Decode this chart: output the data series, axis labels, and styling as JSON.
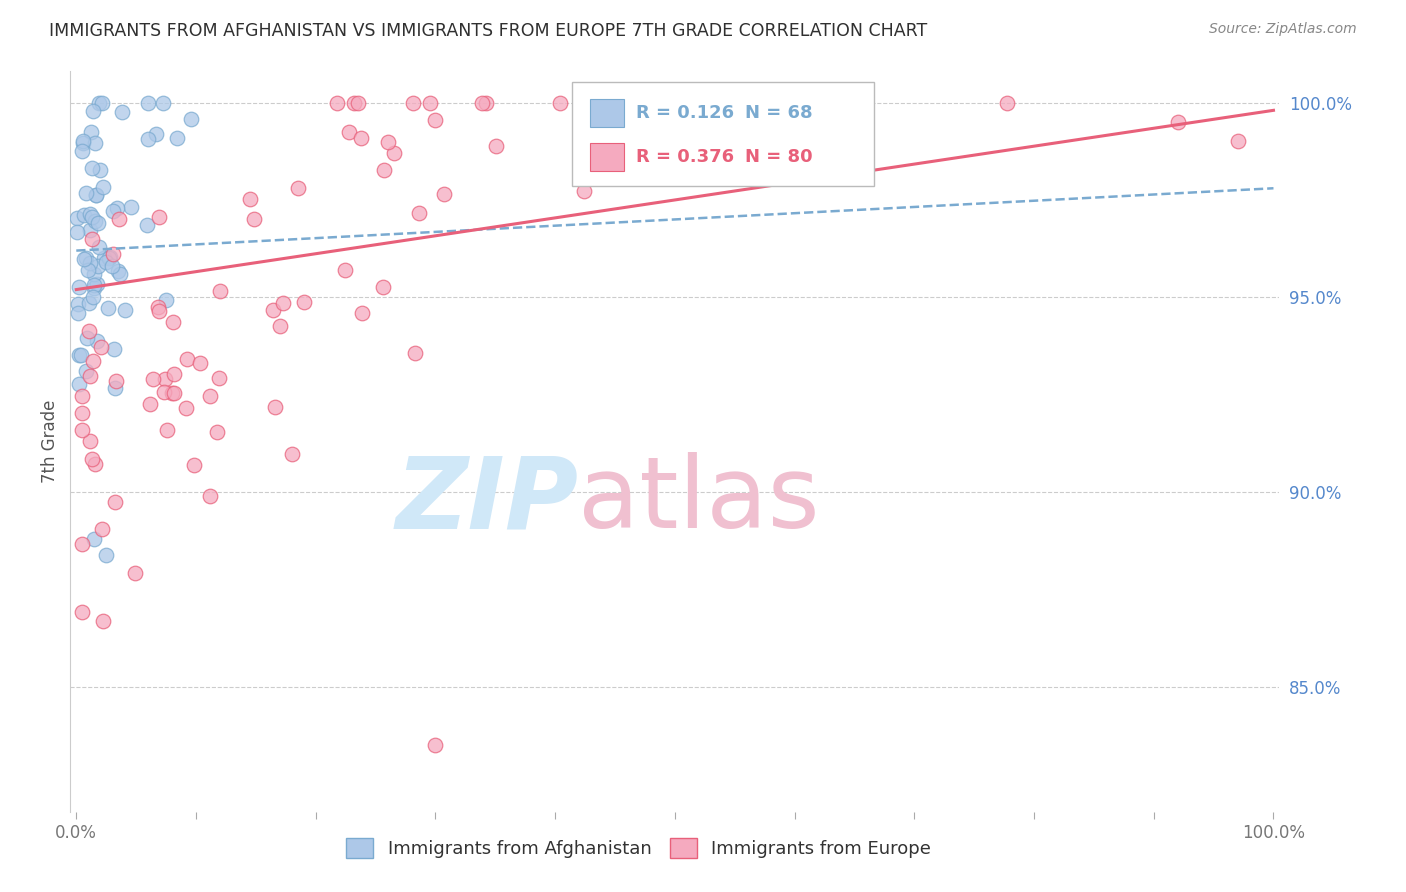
{
  "title": "IMMIGRANTS FROM AFGHANISTAN VS IMMIGRANTS FROM EUROPE 7TH GRADE CORRELATION CHART",
  "source": "Source: ZipAtlas.com",
  "ylabel": "7th Grade",
  "right_yticks": [
    0.85,
    0.9,
    0.95,
    1.0
  ],
  "right_ytick_labels": [
    "85.0%",
    "90.0%",
    "95.0%",
    "100.0%"
  ],
  "xlim": [
    -0.005,
    1.005
  ],
  "ylim": [
    0.818,
    1.008
  ],
  "legend1_label": "Immigrants from Afghanistan",
  "legend2_label": "Immigrants from Europe",
  "R1": 0.126,
  "N1": 68,
  "R2": 0.376,
  "N2": 80,
  "color1": "#adc8e8",
  "color2": "#f5aabf",
  "line1_color": "#7aaad0",
  "line2_color": "#e8607a",
  "grid_color": "#cccccc",
  "watermark_zip_color": "#d0e8f8",
  "watermark_atlas_color": "#f0c0d0",
  "title_color": "#303030",
  "source_color": "#888888",
  "ylabel_color": "#555555",
  "tick_color": "#777777",
  "right_tick_color": "#5588cc"
}
